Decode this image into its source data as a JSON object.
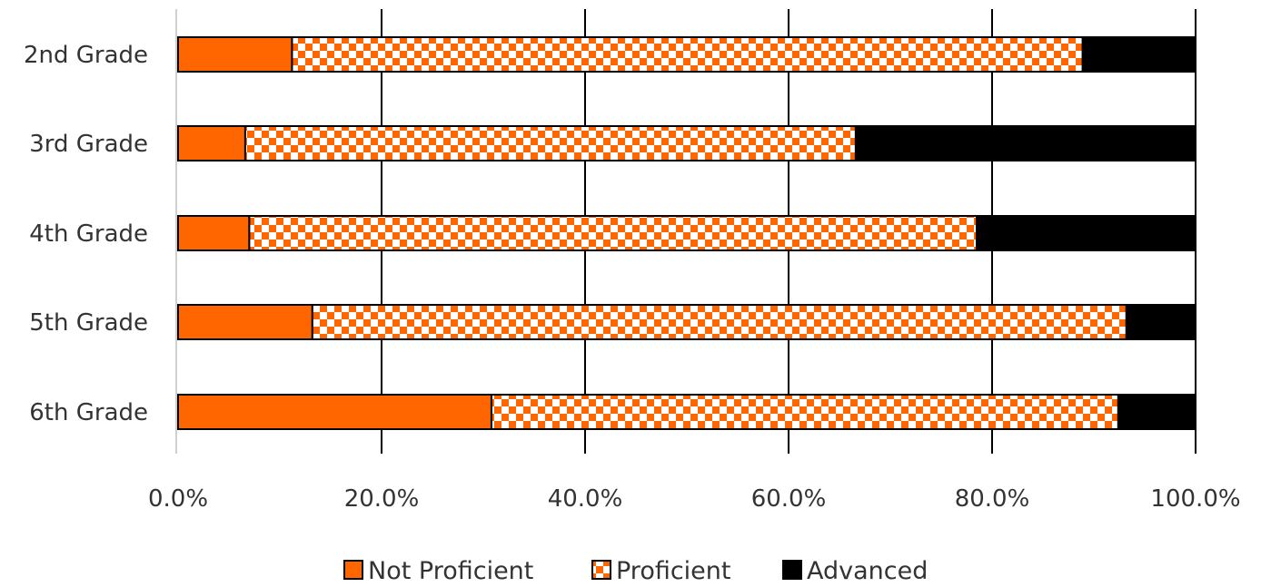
{
  "chart_data": {
    "type": "bar",
    "orientation": "horizontal",
    "stacked": "percent",
    "categories": [
      "2nd Grade",
      "3rd Grade",
      "4th Grade",
      "5th Grade",
      "6th Grade"
    ],
    "series": [
      {
        "name": "Not Proficient",
        "values": [
          11.2,
          6.6,
          7.0,
          13.2,
          30.8
        ],
        "color": "#ff6600",
        "pattern": "solid"
      },
      {
        "name": "Proficient",
        "values": [
          77.7,
          60.0,
          71.5,
          80.0,
          61.6
        ],
        "color": "#ff6600",
        "pattern": "checkerboard"
      },
      {
        "name": "Advanced",
        "values": [
          11.1,
          33.4,
          21.5,
          6.8,
          7.6
        ],
        "color": "#000000",
        "pattern": "solid"
      }
    ],
    "xlim": [
      0,
      100
    ],
    "xticks": [
      "0.0%",
      "20.0%",
      "40.0%",
      "60.0%",
      "80.0%",
      "100.0%"
    ],
    "grid": "vertical",
    "legend": "bottom"
  }
}
